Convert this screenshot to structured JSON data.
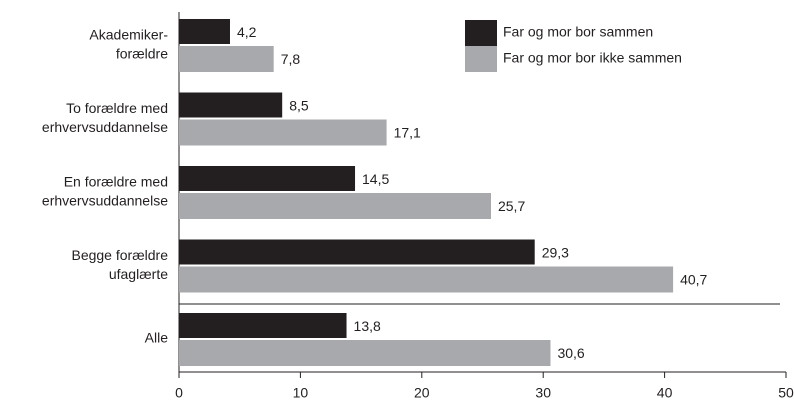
{
  "chart_data": {
    "type": "bar",
    "orientation": "horizontal",
    "categories": [
      "Akademiker-\nforældre",
      "To forældre med\nerhvervsuddannelse",
      "En forældre med\nerhvervsuddannelse",
      "Begge forældre\nufaglærte",
      "Alle"
    ],
    "series": [
      {
        "name": "Far og mor bor sammen",
        "color": "#231f20",
        "values": [
          4.2,
          8.5,
          14.5,
          29.3,
          13.8
        ],
        "value_labels": [
          "4,2",
          "8,5",
          "14,5",
          "29,3",
          "13,8"
        ]
      },
      {
        "name": "Far og mor bor ikke sammen",
        "color": "#a7a9ac",
        "values": [
          7.8,
          17.1,
          25.7,
          40.7,
          30.6
        ],
        "value_labels": [
          "7,8",
          "17,1",
          "25,7",
          "40,7",
          "30,6"
        ]
      }
    ],
    "xlim": [
      0,
      50
    ],
    "xticks": [
      0,
      10,
      20,
      30,
      40,
      50
    ],
    "legend": "top-right"
  }
}
